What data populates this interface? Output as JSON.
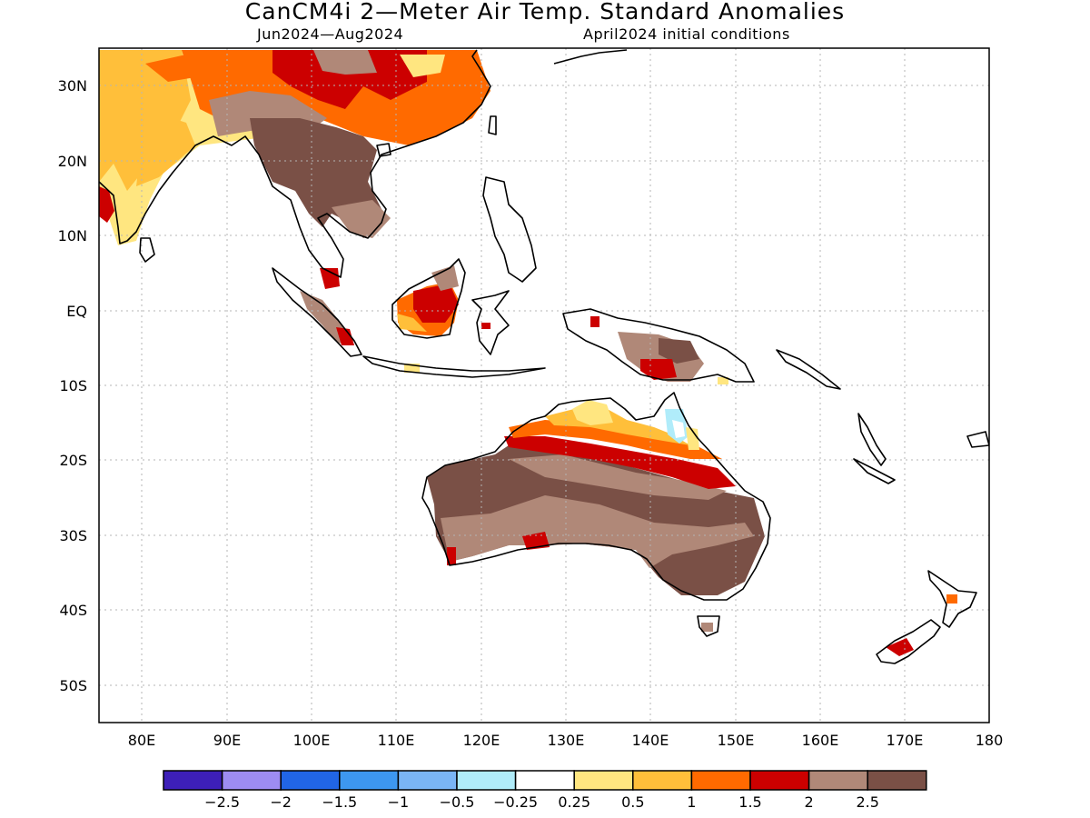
{
  "title": "CanCM4i 2—Meter Air Temp. Standard Anomalies",
  "subtitle_left": "Jun2024—Aug2024",
  "subtitle_right": "April2024 initial conditions",
  "lon_ticks": [
    "80E",
    "90E",
    "100E",
    "110E",
    "120E",
    "130E",
    "140E",
    "150E",
    "160E",
    "170E",
    "180"
  ],
  "lat_ticks": [
    "30N",
    "20N",
    "10N",
    "EQ",
    "10S",
    "20S",
    "30S",
    "40S",
    "50S"
  ],
  "colorbar": {
    "colors": [
      "#3d1fb8",
      "#9d8cf2",
      "#2165e6",
      "#3d97f0",
      "#7ab5f5",
      "#b0ecfa",
      "#ffffff",
      "#ffe680",
      "#ffbf3a",
      "#ff6a00",
      "#cc0000",
      "#b08878",
      "#7a5046"
    ],
    "labels": [
      "−2.5",
      "−2",
      "−1.5",
      "−1",
      "−0.5",
      "−0.25",
      "0.25",
      "0.5",
      "1",
      "1.5",
      "2",
      "2.5"
    ]
  },
  "map_extent": {
    "lon_min": 75,
    "lon_max": 180,
    "lat_min": -55,
    "lat_max": 35
  },
  "anomaly_regions": [
    {
      "name": "north-india-warm",
      "category": "0.5",
      "lon": [
        75,
        92
      ],
      "lat": [
        13,
        30
      ]
    },
    {
      "name": "tibet-plateau-hot",
      "category": "1",
      "lon": [
        80,
        101
      ],
      "lat": [
        25,
        35
      ]
    },
    {
      "name": "south-china-hot",
      "category": "1.5",
      "lon": [
        100,
        122
      ],
      "lat": [
        20,
        35
      ]
    },
    {
      "name": "indochina-extreme",
      "category": "2.5",
      "lon": [
        92,
        109
      ],
      "lat": [
        10,
        25
      ]
    },
    {
      "name": "borneo-hot",
      "category": "2",
      "lon": [
        109,
        117
      ],
      "lat": [
        -2,
        4
      ]
    },
    {
      "name": "new-guinea-extreme",
      "category": "2.5",
      "lon": [
        134,
        146
      ],
      "lat": [
        -8,
        -3
      ]
    },
    {
      "name": "australia-interior-extreme",
      "category": "2.5",
      "lon": [
        114,
        153
      ],
      "lat": [
        -38,
        -20
      ]
    },
    {
      "name": "australia-north-band",
      "category": "1.5",
      "lon": [
        124,
        150
      ],
      "lat": [
        -22,
        -16
      ]
    },
    {
      "name": "cape-york-cool",
      "category": "-0.5",
      "lon": [
        142,
        144
      ],
      "lat": [
        -18,
        -14
      ]
    },
    {
      "name": "new-zealand-south-hot",
      "category": "2",
      "lon": [
        167,
        171
      ],
      "lat": [
        -46,
        -44
      ]
    }
  ]
}
